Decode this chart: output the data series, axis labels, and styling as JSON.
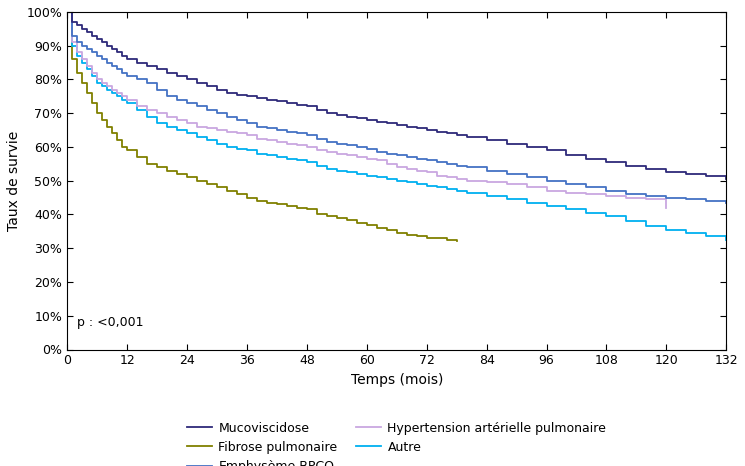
{
  "title": "",
  "xlabel": "Temps (mois)",
  "ylabel": "Taux de survie",
  "xlim": [
    0,
    132
  ],
  "ylim": [
    0,
    1.0
  ],
  "xticks": [
    0,
    12,
    24,
    36,
    48,
    60,
    72,
    84,
    96,
    108,
    120,
    132
  ],
  "yticks": [
    0.0,
    0.1,
    0.2,
    0.3,
    0.4,
    0.5,
    0.6,
    0.7,
    0.8,
    0.9,
    1.0
  ],
  "pvalue_text": "p : <0,001",
  "background_color": "#ffffff",
  "series": {
    "Mucoviscidose": {
      "color": "#2e2a7a",
      "linewidth": 1.3,
      "x": [
        0,
        1,
        2,
        3,
        4,
        5,
        6,
        7,
        8,
        9,
        10,
        11,
        12,
        14,
        16,
        18,
        20,
        22,
        24,
        26,
        28,
        30,
        32,
        34,
        36,
        38,
        40,
        42,
        44,
        46,
        48,
        50,
        52,
        54,
        56,
        58,
        60,
        62,
        64,
        66,
        68,
        70,
        72,
        74,
        76,
        78,
        80,
        84,
        88,
        92,
        96,
        100,
        104,
        108,
        112,
        116,
        120,
        124,
        128,
        132
      ],
      "y": [
        1.0,
        0.97,
        0.96,
        0.95,
        0.94,
        0.93,
        0.92,
        0.91,
        0.9,
        0.89,
        0.88,
        0.87,
        0.86,
        0.85,
        0.84,
        0.83,
        0.82,
        0.81,
        0.8,
        0.79,
        0.78,
        0.77,
        0.76,
        0.755,
        0.75,
        0.745,
        0.74,
        0.735,
        0.73,
        0.725,
        0.72,
        0.71,
        0.7,
        0.695,
        0.69,
        0.685,
        0.68,
        0.675,
        0.67,
        0.665,
        0.66,
        0.655,
        0.65,
        0.645,
        0.64,
        0.635,
        0.63,
        0.62,
        0.61,
        0.6,
        0.59,
        0.575,
        0.565,
        0.555,
        0.545,
        0.535,
        0.525,
        0.52,
        0.515,
        0.505
      ]
    },
    "Emphysème-BPCO": {
      "color": "#4472c4",
      "linewidth": 1.3,
      "x": [
        0,
        1,
        2,
        3,
        4,
        5,
        6,
        7,
        8,
        9,
        10,
        11,
        12,
        14,
        16,
        18,
        20,
        22,
        24,
        26,
        28,
        30,
        32,
        34,
        36,
        38,
        40,
        42,
        44,
        46,
        48,
        50,
        52,
        54,
        56,
        58,
        60,
        62,
        64,
        66,
        68,
        70,
        72,
        74,
        76,
        78,
        80,
        84,
        88,
        92,
        96,
        100,
        104,
        108,
        112,
        116,
        120,
        124,
        128,
        132
      ],
      "y": [
        1.0,
        0.93,
        0.91,
        0.9,
        0.89,
        0.88,
        0.87,
        0.86,
        0.85,
        0.84,
        0.83,
        0.82,
        0.81,
        0.8,
        0.79,
        0.77,
        0.75,
        0.74,
        0.73,
        0.72,
        0.71,
        0.7,
        0.69,
        0.68,
        0.67,
        0.66,
        0.655,
        0.65,
        0.645,
        0.64,
        0.635,
        0.625,
        0.615,
        0.61,
        0.605,
        0.6,
        0.595,
        0.585,
        0.58,
        0.575,
        0.57,
        0.565,
        0.56,
        0.555,
        0.55,
        0.545,
        0.54,
        0.53,
        0.52,
        0.51,
        0.5,
        0.49,
        0.48,
        0.47,
        0.46,
        0.455,
        0.45,
        0.445,
        0.44,
        0.435
      ]
    },
    "Autre": {
      "color": "#00b0f0",
      "linewidth": 1.3,
      "x": [
        0,
        1,
        2,
        3,
        4,
        5,
        6,
        7,
        8,
        9,
        10,
        11,
        12,
        14,
        16,
        18,
        20,
        22,
        24,
        26,
        28,
        30,
        32,
        34,
        36,
        38,
        40,
        42,
        44,
        46,
        48,
        50,
        52,
        54,
        56,
        58,
        60,
        62,
        64,
        66,
        68,
        70,
        72,
        74,
        76,
        78,
        80,
        84,
        88,
        92,
        96,
        100,
        104,
        108,
        112,
        116,
        120,
        124,
        128,
        132
      ],
      "y": [
        1.0,
        0.9,
        0.87,
        0.85,
        0.83,
        0.81,
        0.79,
        0.78,
        0.77,
        0.76,
        0.75,
        0.74,
        0.73,
        0.71,
        0.69,
        0.67,
        0.66,
        0.65,
        0.64,
        0.63,
        0.62,
        0.61,
        0.6,
        0.595,
        0.59,
        0.58,
        0.575,
        0.57,
        0.565,
        0.56,
        0.555,
        0.545,
        0.535,
        0.53,
        0.525,
        0.52,
        0.515,
        0.51,
        0.505,
        0.5,
        0.495,
        0.49,
        0.485,
        0.48,
        0.475,
        0.47,
        0.465,
        0.455,
        0.445,
        0.435,
        0.425,
        0.415,
        0.405,
        0.395,
        0.38,
        0.365,
        0.355,
        0.345,
        0.335,
        0.325
      ]
    },
    "Fibrose pulmonaire": {
      "color": "#808000",
      "linewidth": 1.3,
      "x": [
        0,
        1,
        2,
        3,
        4,
        5,
        6,
        7,
        8,
        9,
        10,
        11,
        12,
        14,
        16,
        18,
        20,
        22,
        24,
        26,
        28,
        30,
        32,
        34,
        36,
        38,
        40,
        42,
        44,
        46,
        48,
        50,
        52,
        54,
        56,
        58,
        60,
        62,
        64,
        66,
        68,
        70,
        72,
        74,
        76,
        78
      ],
      "y": [
        1.0,
        0.86,
        0.82,
        0.79,
        0.76,
        0.73,
        0.7,
        0.68,
        0.66,
        0.64,
        0.62,
        0.6,
        0.59,
        0.57,
        0.55,
        0.54,
        0.53,
        0.52,
        0.51,
        0.5,
        0.49,
        0.48,
        0.47,
        0.46,
        0.45,
        0.44,
        0.435,
        0.43,
        0.425,
        0.42,
        0.415,
        0.4,
        0.395,
        0.39,
        0.385,
        0.375,
        0.37,
        0.36,
        0.355,
        0.345,
        0.34,
        0.335,
        0.33,
        0.33,
        0.325,
        0.32
      ]
    },
    "Hypertension artérielle pulmonaire": {
      "color": "#c9a7e0",
      "linewidth": 1.3,
      "x": [
        0,
        1,
        2,
        3,
        4,
        5,
        6,
        7,
        8,
        9,
        10,
        11,
        12,
        14,
        16,
        18,
        20,
        22,
        24,
        26,
        28,
        30,
        32,
        34,
        36,
        38,
        40,
        42,
        44,
        46,
        48,
        50,
        52,
        54,
        56,
        58,
        60,
        62,
        64,
        66,
        68,
        70,
        72,
        74,
        76,
        78,
        80,
        84,
        88,
        92,
        96,
        100,
        104,
        108,
        112,
        116,
        120
      ],
      "y": [
        1.0,
        0.91,
        0.88,
        0.86,
        0.84,
        0.82,
        0.8,
        0.79,
        0.78,
        0.77,
        0.76,
        0.75,
        0.74,
        0.72,
        0.71,
        0.7,
        0.69,
        0.68,
        0.67,
        0.66,
        0.655,
        0.65,
        0.645,
        0.64,
        0.635,
        0.625,
        0.62,
        0.615,
        0.61,
        0.605,
        0.6,
        0.59,
        0.585,
        0.58,
        0.575,
        0.57,
        0.565,
        0.56,
        0.55,
        0.54,
        0.535,
        0.53,
        0.525,
        0.515,
        0.51,
        0.505,
        0.5,
        0.495,
        0.49,
        0.48,
        0.47,
        0.465,
        0.46,
        0.455,
        0.45,
        0.445,
        0.42
      ]
    }
  },
  "legend_col1": [
    "Mucoviscidose",
    "Emphysème-BPCO",
    "Autre"
  ],
  "legend_col2": [
    "Fibrose pulmonaire",
    "Hypertension artérielle pulmonaire"
  ],
  "legend_fontsize": 9,
  "axis_fontsize": 10,
  "tick_fontsize": 9
}
